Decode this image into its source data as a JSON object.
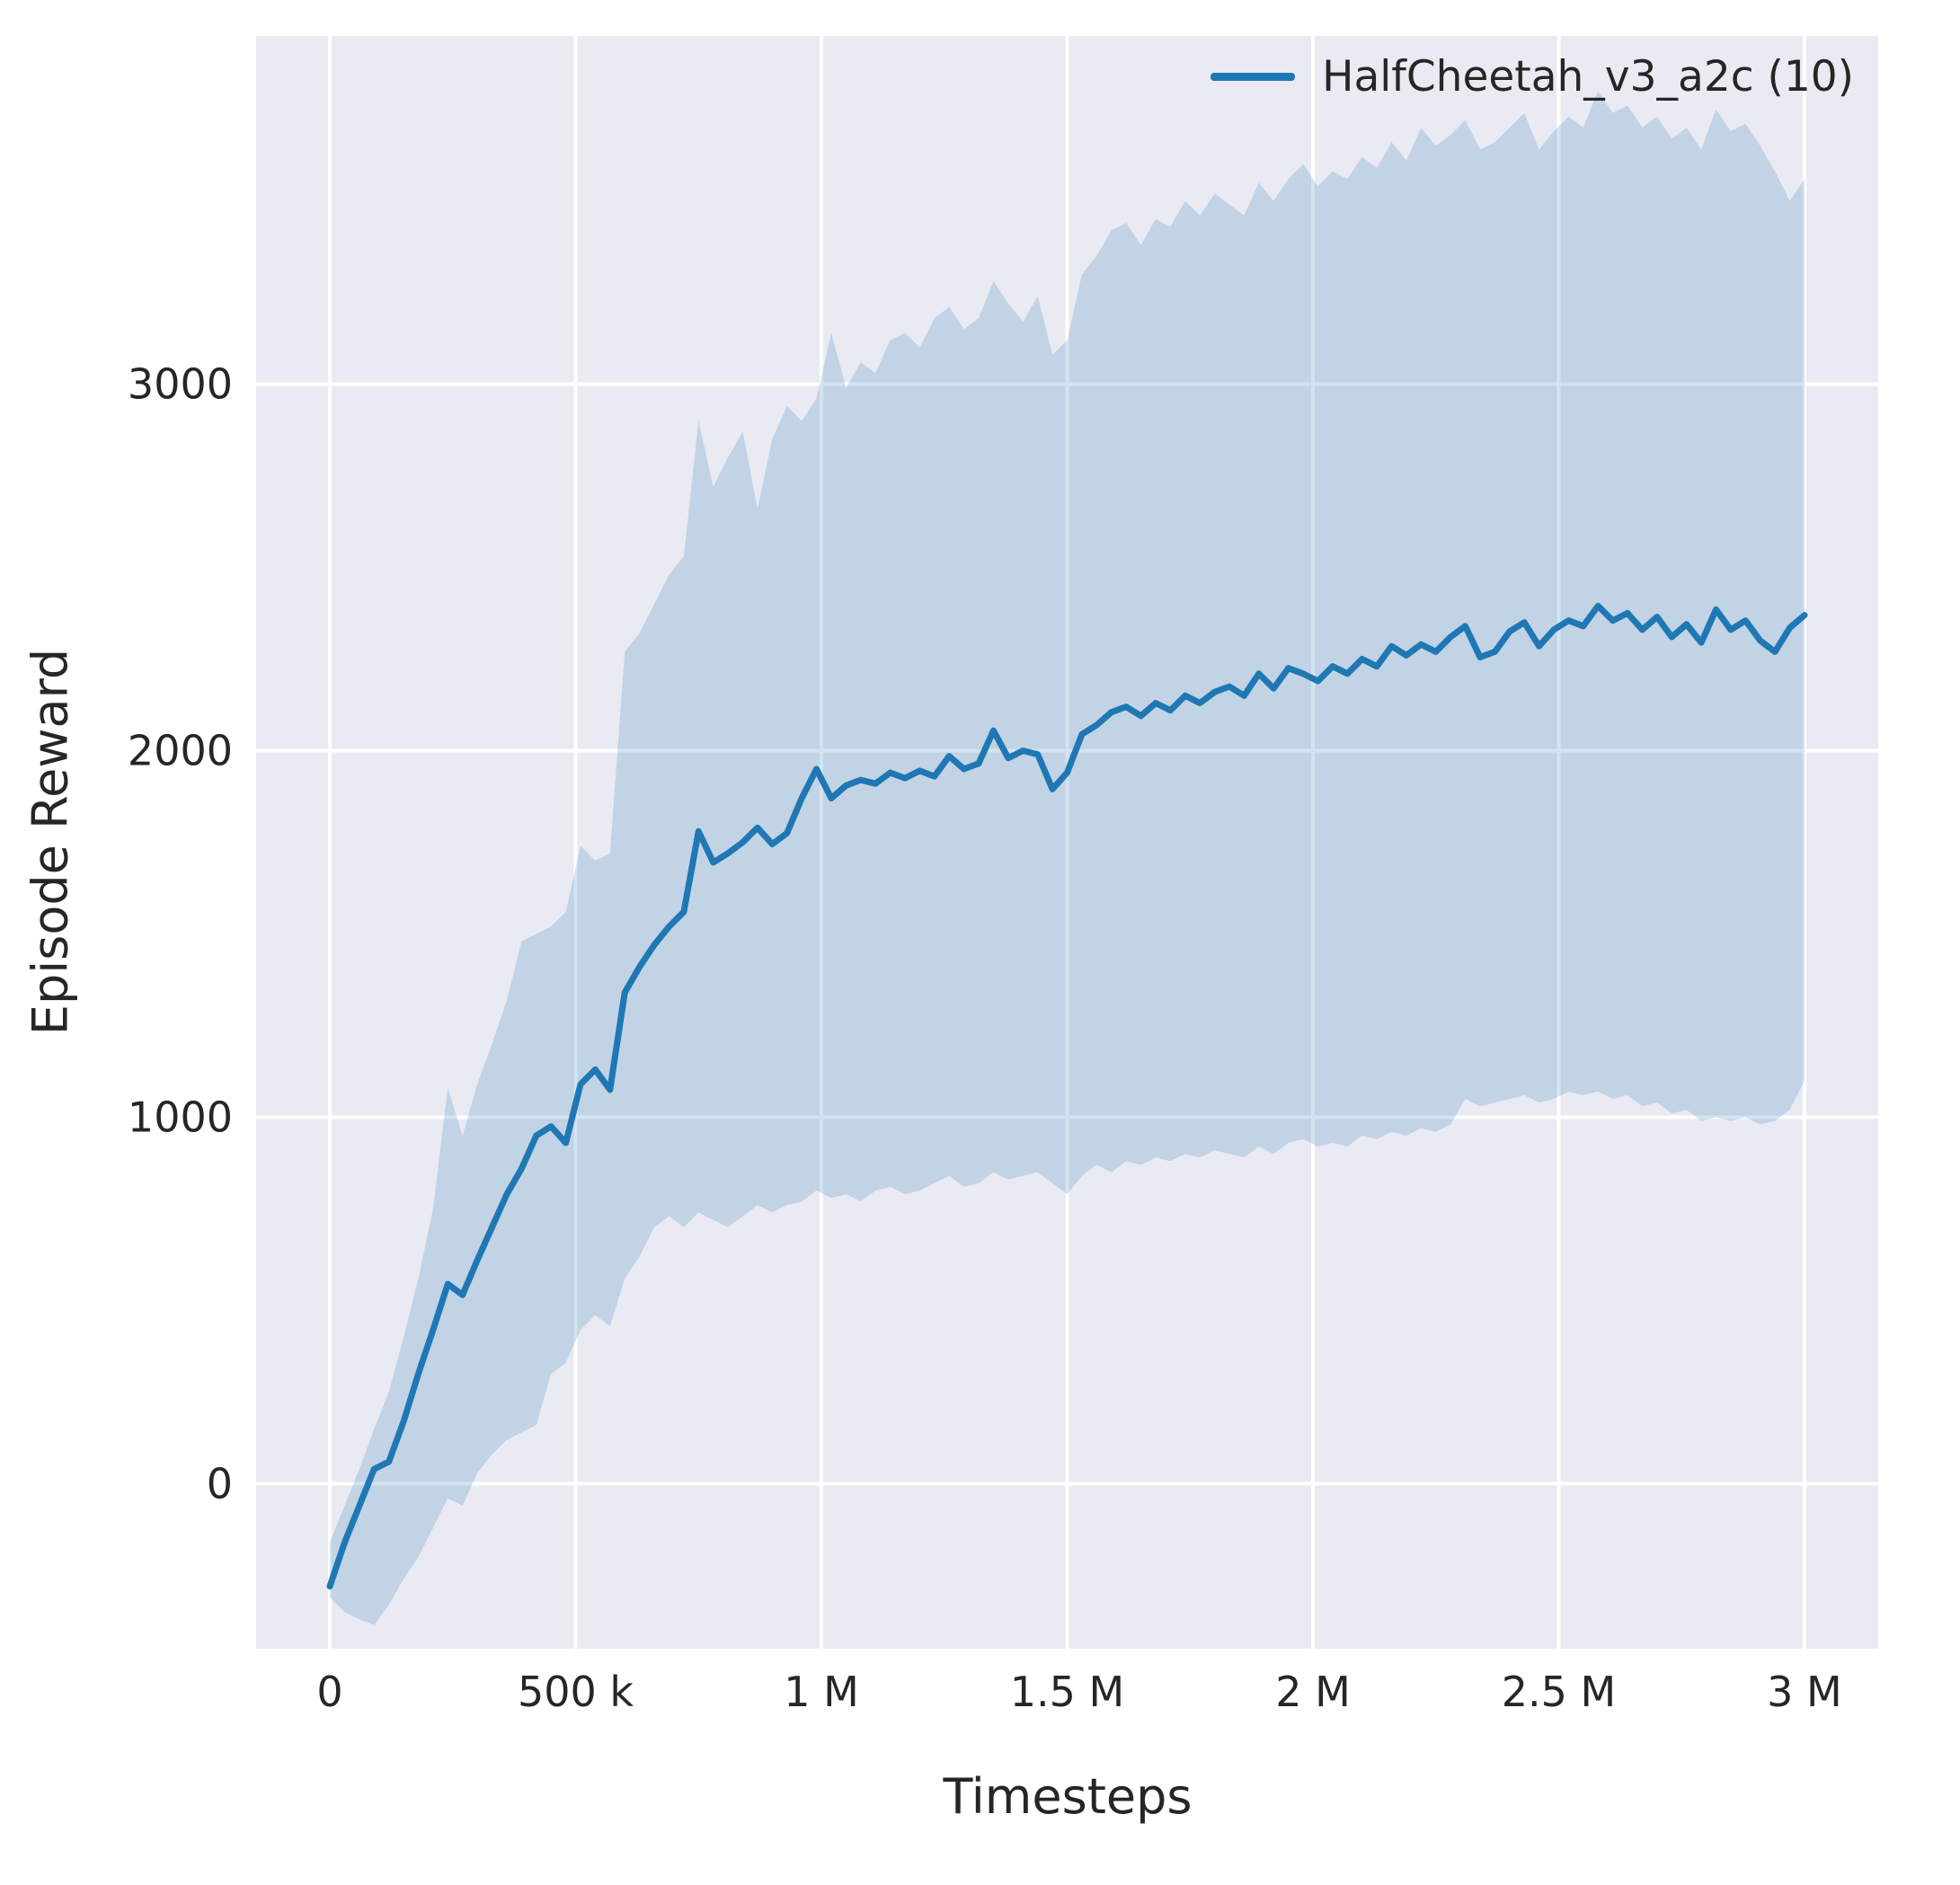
{
  "chart_data": {
    "type": "line",
    "title": "",
    "xlabel": "Timesteps",
    "ylabel": "Episode Reward",
    "legend": [
      {
        "label": "HalfCheetah_v3_a2c (10)",
        "color": "#1f77b4"
      }
    ],
    "background": "#eaeaf2",
    "grid_color": "#ffffff",
    "line_color": "#1f77b4",
    "band_opacity": 0.2,
    "grid": true,
    "legend_position": "upper right",
    "x_unit_note": "x values in thousands of timesteps",
    "xlim": [
      -150,
      3150
    ],
    "ylim": [
      -450,
      3950
    ],
    "x_ticks": [
      {
        "value": 0,
        "label": "0"
      },
      {
        "value": 500,
        "label": "500 k"
      },
      {
        "value": 1000,
        "label": "1 M"
      },
      {
        "value": 1500,
        "label": "1.5 M"
      },
      {
        "value": 2000,
        "label": "2 M"
      },
      {
        "value": 2500,
        "label": "2.5 M"
      },
      {
        "value": 3000,
        "label": "3 M"
      }
    ],
    "y_ticks": [
      {
        "value": 0,
        "label": "0"
      },
      {
        "value": 1000,
        "label": "1000"
      },
      {
        "value": 2000,
        "label": "2000"
      },
      {
        "value": 3000,
        "label": "3000"
      }
    ],
    "series": [
      {
        "name": "HalfCheetah_v3_a2c (10)",
        "x": [
          0,
          30,
          60,
          90,
          120,
          150,
          180,
          210,
          240,
          270,
          300,
          330,
          360,
          390,
          420,
          450,
          480,
          510,
          540,
          570,
          600,
          630,
          660,
          690,
          720,
          750,
          780,
          810,
          840,
          870,
          900,
          930,
          960,
          990,
          1020,
          1050,
          1080,
          1110,
          1140,
          1170,
          1200,
          1230,
          1260,
          1290,
          1320,
          1350,
          1380,
          1410,
          1440,
          1470,
          1500,
          1530,
          1560,
          1590,
          1620,
          1650,
          1680,
          1710,
          1740,
          1770,
          1800,
          1830,
          1860,
          1890,
          1920,
          1950,
          1980,
          2010,
          2040,
          2070,
          2100,
          2130,
          2160,
          2190,
          2220,
          2250,
          2280,
          2310,
          2340,
          2370,
          2400,
          2430,
          2460,
          2490,
          2520,
          2550,
          2580,
          2610,
          2640,
          2670,
          2700,
          2730,
          2760,
          2790,
          2820,
          2850,
          2880,
          2910,
          2940,
          2970,
          3000
        ],
        "mean": [
          -280,
          -160,
          -60,
          40,
          60,
          170,
          300,
          420,
          545,
          515,
          610,
          700,
          790,
          860,
          950,
          975,
          930,
          1090,
          1130,
          1075,
          1340,
          1410,
          1470,
          1520,
          1560,
          1780,
          1695,
          1720,
          1750,
          1790,
          1745,
          1775,
          1870,
          1950,
          1870,
          1905,
          1920,
          1910,
          1940,
          1925,
          1945,
          1930,
          1985,
          1950,
          1965,
          2055,
          1980,
          2000,
          1990,
          1895,
          1940,
          2045,
          2070,
          2105,
          2120,
          2095,
          2130,
          2110,
          2150,
          2130,
          2160,
          2175,
          2150,
          2210,
          2170,
          2225,
          2210,
          2190,
          2230,
          2210,
          2250,
          2230,
          2285,
          2260,
          2290,
          2270,
          2310,
          2340,
          2255,
          2270,
          2325,
          2350,
          2285,
          2330,
          2355,
          2340,
          2395,
          2355,
          2375,
          2330,
          2365,
          2310,
          2345,
          2295,
          2385,
          2330,
          2355,
          2300,
          2270,
          2335,
          2370
        ],
        "lower": [
          -310,
          -350,
          -370,
          -385,
          -330,
          -260,
          -200,
          -120,
          -40,
          -60,
          30,
          80,
          120,
          140,
          160,
          300,
          330,
          420,
          460,
          430,
          560,
          620,
          700,
          730,
          700,
          740,
          720,
          700,
          730,
          760,
          740,
          760,
          770,
          800,
          780,
          790,
          770,
          800,
          810,
          790,
          800,
          820,
          840,
          810,
          820,
          850,
          830,
          840,
          850,
          820,
          790,
          840,
          870,
          850,
          880,
          870,
          890,
          880,
          900,
          890,
          910,
          900,
          890,
          920,
          900,
          930,
          940,
          920,
          930,
          920,
          950,
          940,
          960,
          950,
          970,
          960,
          980,
          1050,
          1030,
          1040,
          1050,
          1060,
          1040,
          1050,
          1070,
          1060,
          1070,
          1050,
          1060,
          1030,
          1040,
          1010,
          1020,
          990,
          1000,
          990,
          1000,
          980,
          990,
          1020,
          1100
        ],
        "upper": [
          -160,
          -60,
          40,
          150,
          250,
          400,
          560,
          750,
          1080,
          950,
          1090,
          1200,
          1320,
          1480,
          1500,
          1520,
          1560,
          1740,
          1700,
          1720,
          2270,
          2320,
          2400,
          2480,
          2530,
          2900,
          2720,
          2800,
          2870,
          2660,
          2850,
          2940,
          2900,
          2960,
          3140,
          2990,
          3060,
          3030,
          3120,
          3140,
          3100,
          3180,
          3210,
          3150,
          3180,
          3280,
          3220,
          3170,
          3240,
          3080,
          3120,
          3300,
          3350,
          3420,
          3440,
          3380,
          3450,
          3430,
          3500,
          3460,
          3520,
          3490,
          3460,
          3550,
          3500,
          3560,
          3600,
          3540,
          3580,
          3560,
          3620,
          3590,
          3660,
          3610,
          3700,
          3650,
          3680,
          3720,
          3640,
          3660,
          3700,
          3740,
          3640,
          3690,
          3730,
          3700,
          3800,
          3740,
          3760,
          3700,
          3730,
          3670,
          3700,
          3640,
          3750,
          3690,
          3710,
          3650,
          3580,
          3500,
          3560
        ]
      }
    ]
  }
}
